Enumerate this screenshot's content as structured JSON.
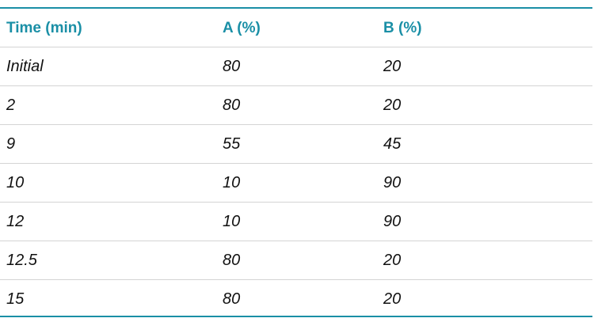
{
  "table": {
    "headers": [
      "Time (min)",
      "A (%)",
      "B (%)"
    ],
    "rows": [
      [
        "Initial",
        "80",
        "20"
      ],
      [
        "2",
        "80",
        "20"
      ],
      [
        "9",
        "55",
        "45"
      ],
      [
        "10",
        "10",
        "90"
      ],
      [
        "12",
        "10",
        "90"
      ],
      [
        "12.5",
        "80",
        "20"
      ],
      [
        "15",
        "80",
        "20"
      ]
    ]
  },
  "colors": {
    "accent": "#1a8fa6",
    "row_divider": "#d4d4d4",
    "text": "#111111"
  }
}
